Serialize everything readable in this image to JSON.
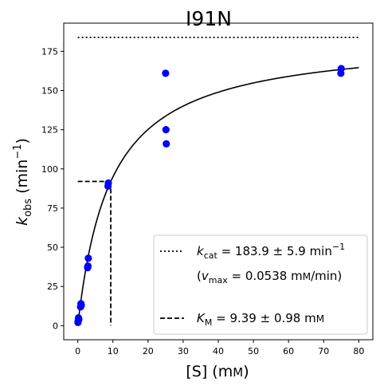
{
  "chart_data": {
    "type": "scatter",
    "title": "I91N",
    "xlabel": "[S] (mM)",
    "ylabel": "k_obs (min⁻¹)",
    "xlim": [
      -4,
      84
    ],
    "ylim": [
      -9,
      193
    ],
    "x_ticks": [
      0,
      10,
      20,
      30,
      40,
      50,
      60,
      70,
      80
    ],
    "y_ticks": [
      0,
      25,
      50,
      75,
      100,
      125,
      150,
      175
    ],
    "grid": false,
    "legend_position": "lower-right",
    "points": {
      "color": "#0000ff",
      "x": [
        0.05,
        0.1,
        0.2,
        0.3,
        0.8,
        0.9,
        1.0,
        2.8,
        2.9,
        3.0,
        8.6,
        8.7,
        25.0,
        25.1,
        25.2,
        74.9,
        75.0
      ],
      "y": [
        2,
        3,
        5,
        4,
        12,
        14,
        13,
        37,
        38,
        43,
        89,
        91,
        161,
        125,
        116,
        161,
        164
      ]
    },
    "fit_curve": {
      "name": "Michaelis-Menten fit",
      "color": "#000000",
      "kcat": 183.9,
      "Km": 9.39,
      "x_range": [
        0,
        80
      ]
    },
    "kcat_line": {
      "y": 183.9,
      "x_range": [
        0,
        80
      ],
      "style": "dotted"
    },
    "km_lines": {
      "x": 9.39,
      "y": 92,
      "style": "dashed"
    },
    "legend": {
      "kcat_label": "k_cat = 183.9 ± 5.9 min⁻¹",
      "vmax_label": "(v_max = 0.0538 mM/min)",
      "km_label": "K_M = 9.39 ± 0.98 mM"
    }
  }
}
